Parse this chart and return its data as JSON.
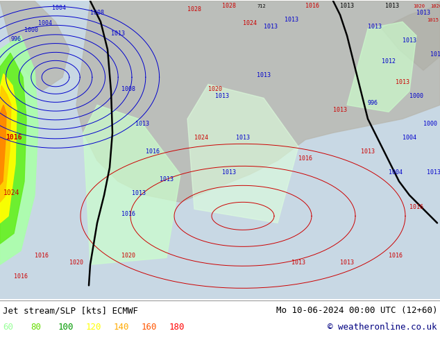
{
  "title_left": "Jet stream/SLP [kts] ECMWF",
  "title_right": "Mo 10-06-2024 00:00 UTC (12+60)",
  "copyright": "© weatheronline.co.uk",
  "legend_values": [
    60,
    80,
    100,
    120,
    140,
    160,
    180
  ],
  "legend_colors_text": [
    "#99ff99",
    "#66dd00",
    "#009900",
    "#ffff00",
    "#ffaa00",
    "#ff5500",
    "#ff0000"
  ],
  "fig_width": 6.34,
  "fig_height": 4.9,
  "dpi": 100,
  "map_bg": "#ccd8e0",
  "land_color": "#b4b4b4",
  "bottom_bg": "#ffffff",
  "text_color_left": "#000000",
  "text_color_right": "#000000",
  "copyright_color": "#000080",
  "blue": "#0000cc",
  "red": "#cc0000",
  "black": "#000000",
  "green_light": "#ccffcc",
  "green_mid": "#88ee44",
  "yellow": "#ffff00",
  "orange": "#ffaa00",
  "gold": "#ffcc00"
}
